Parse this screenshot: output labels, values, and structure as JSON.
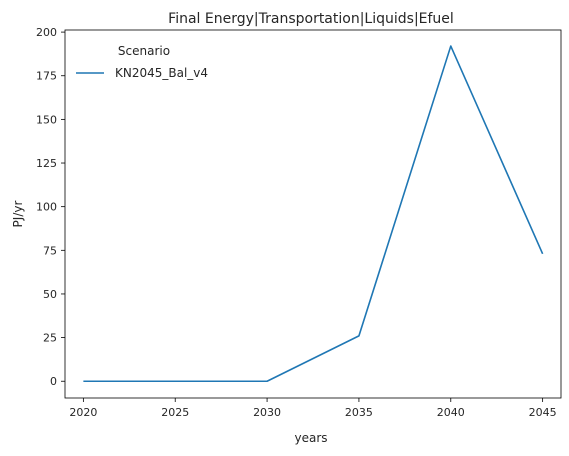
{
  "chart_data": {
    "type": "line",
    "title": "Final Energy|Transportation|Liquids|Efuel",
    "xlabel": "years",
    "ylabel": "PJ/yr",
    "xlim": [
      2019,
      2046
    ],
    "ylim": [
      -9.6,
      201.2
    ],
    "xticks": [
      2020,
      2025,
      2030,
      2035,
      2040,
      2045
    ],
    "yticks": [
      0,
      25,
      50,
      75,
      100,
      125,
      150,
      175,
      200
    ],
    "grid": false,
    "legend": {
      "title": "Scenario",
      "placement": "top-left"
    },
    "series": [
      {
        "name": "KN2045_Bal_v4",
        "color": "#1f77b4",
        "x": [
          2020,
          2030,
          2035,
          2040,
          2045
        ],
        "y": [
          0,
          0,
          26,
          192,
          73
        ]
      }
    ]
  }
}
